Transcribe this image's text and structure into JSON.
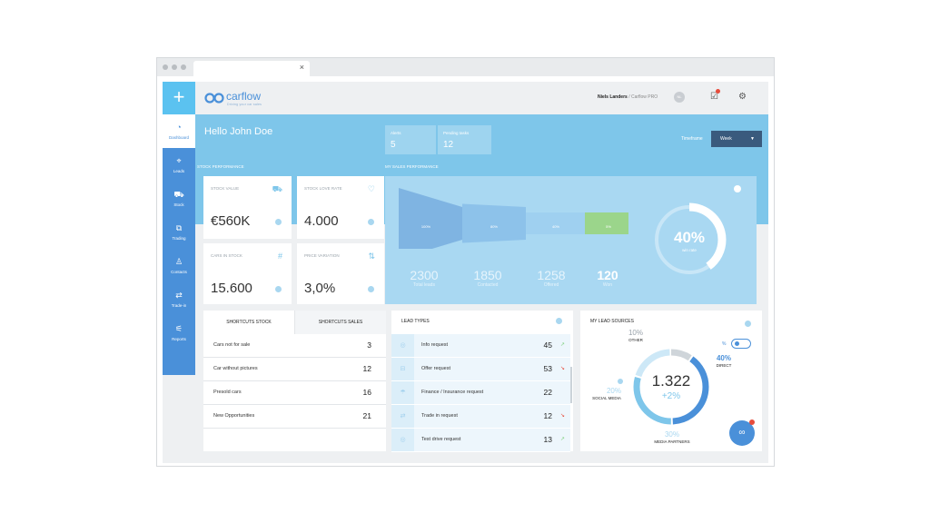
{
  "browser": {
    "tab_close": "×"
  },
  "sidebar": {
    "plus": "+",
    "items": [
      {
        "label": "Dashboard",
        "icon": "◔"
      },
      {
        "label": "Leads",
        "icon": "⌖"
      },
      {
        "label": "Stock",
        "icon": "⛟"
      },
      {
        "label": "Trading",
        "icon": "⧉"
      },
      {
        "label": "Contacts",
        "icon": "♙"
      },
      {
        "label": "Trade-in",
        "icon": "⇄"
      },
      {
        "label": "Reports",
        "icon": "⚟"
      }
    ]
  },
  "header": {
    "logo": "carflow",
    "tagline": "Driving your car sales",
    "user_name": "Niels Landers",
    "user_org": "/ Carflow PRO",
    "avatar_initials": "NL",
    "tasks_icon": "☑",
    "settings_icon": "⚙"
  },
  "banner": {
    "hello": "Hello John Doe",
    "alerts_label": "Alerts",
    "alerts_value": "5",
    "pending_label": "Pending tasks",
    "pending_value": "12",
    "timeframe_label": "Timeframe",
    "timeframe_value": "Week",
    "stock_perf_label": "STOCK PERFORMANCE",
    "sales_perf_label": "MY SALES PERFORMANCE"
  },
  "stock_cards": [
    {
      "title": "STOCK VALUE",
      "value": "€560K",
      "icon": "⛟"
    },
    {
      "title": "STOCK LOVE RATE",
      "value": "4.000",
      "icon": "♡"
    },
    {
      "title": "CARS IN STOCK",
      "value": "15.600",
      "icon": "#"
    },
    {
      "title": "PRICE VARIATION",
      "value": "3,0%",
      "icon": "⇅"
    }
  ],
  "sales_performance": {
    "funnel": [
      {
        "pct": "100%",
        "value": "2300",
        "label": "Total leads",
        "fraction": 1.0
      },
      {
        "pct": "80%",
        "value": "1850",
        "label": "Contacted",
        "fraction": 0.8
      },
      {
        "pct": "40%",
        "value": "1258",
        "label": "Offered",
        "fraction": 0.4
      },
      {
        "pct": "5%",
        "value": "120",
        "label": "Won",
        "fraction": 0.05
      }
    ],
    "win_rate": "40%",
    "win_rate_label": "win rate",
    "win_rate_fraction": 0.4
  },
  "shortcuts": {
    "tab_stock": "SHORTCUTS STOCK",
    "tab_sales": "SHORTCUTS SALES",
    "rows": [
      {
        "label": "Cars not for sale",
        "count": "3"
      },
      {
        "label": "Car without pictures",
        "count": "12"
      },
      {
        "label": "Presold cars",
        "count": "16"
      },
      {
        "label": "New Opportunities",
        "count": "21"
      }
    ]
  },
  "lead_types": {
    "title": "LEAD TYPES",
    "rows": [
      {
        "label": "Info request",
        "count": "45",
        "trend": "↗",
        "icon": "◎",
        "trend_color": "#7fd07f"
      },
      {
        "label": "Offer request",
        "count": "53",
        "trend": "↘",
        "icon": "⊟",
        "trend_color": "#e74c3c"
      },
      {
        "label": "Finance / Insurance request",
        "count": "22",
        "trend": "",
        "icon": "☂",
        "trend_color": "#7fd07f"
      },
      {
        "label": "Trade in request",
        "count": "12",
        "trend": "↘",
        "icon": "⇄",
        "trend_color": "#e74c3c"
      },
      {
        "label": "Test drive request",
        "count": "13",
        "trend": "↗",
        "icon": "◎",
        "trend_color": "#7fd07f"
      }
    ]
  },
  "lead_sources": {
    "title": "MY LEAD SOURCES",
    "total": "1.322",
    "delta": "+2%",
    "toggle_label": "%",
    "sources": [
      {
        "pct": "10%",
        "name": "OTHER",
        "fraction": 0.1,
        "color": "#cfd5da"
      },
      {
        "pct": "40%",
        "name": "DIRECT",
        "fraction": 0.4,
        "color": "#4a90d9"
      },
      {
        "pct": "30%",
        "name": "MEDIA PARTNERS",
        "fraction": 0.3,
        "color": "#7ec6ea"
      },
      {
        "pct": "20%",
        "name": "SOCIAL MEDIA",
        "fraction": 0.2,
        "color": "#cde8f7"
      }
    ],
    "fab_icon": "∞"
  }
}
